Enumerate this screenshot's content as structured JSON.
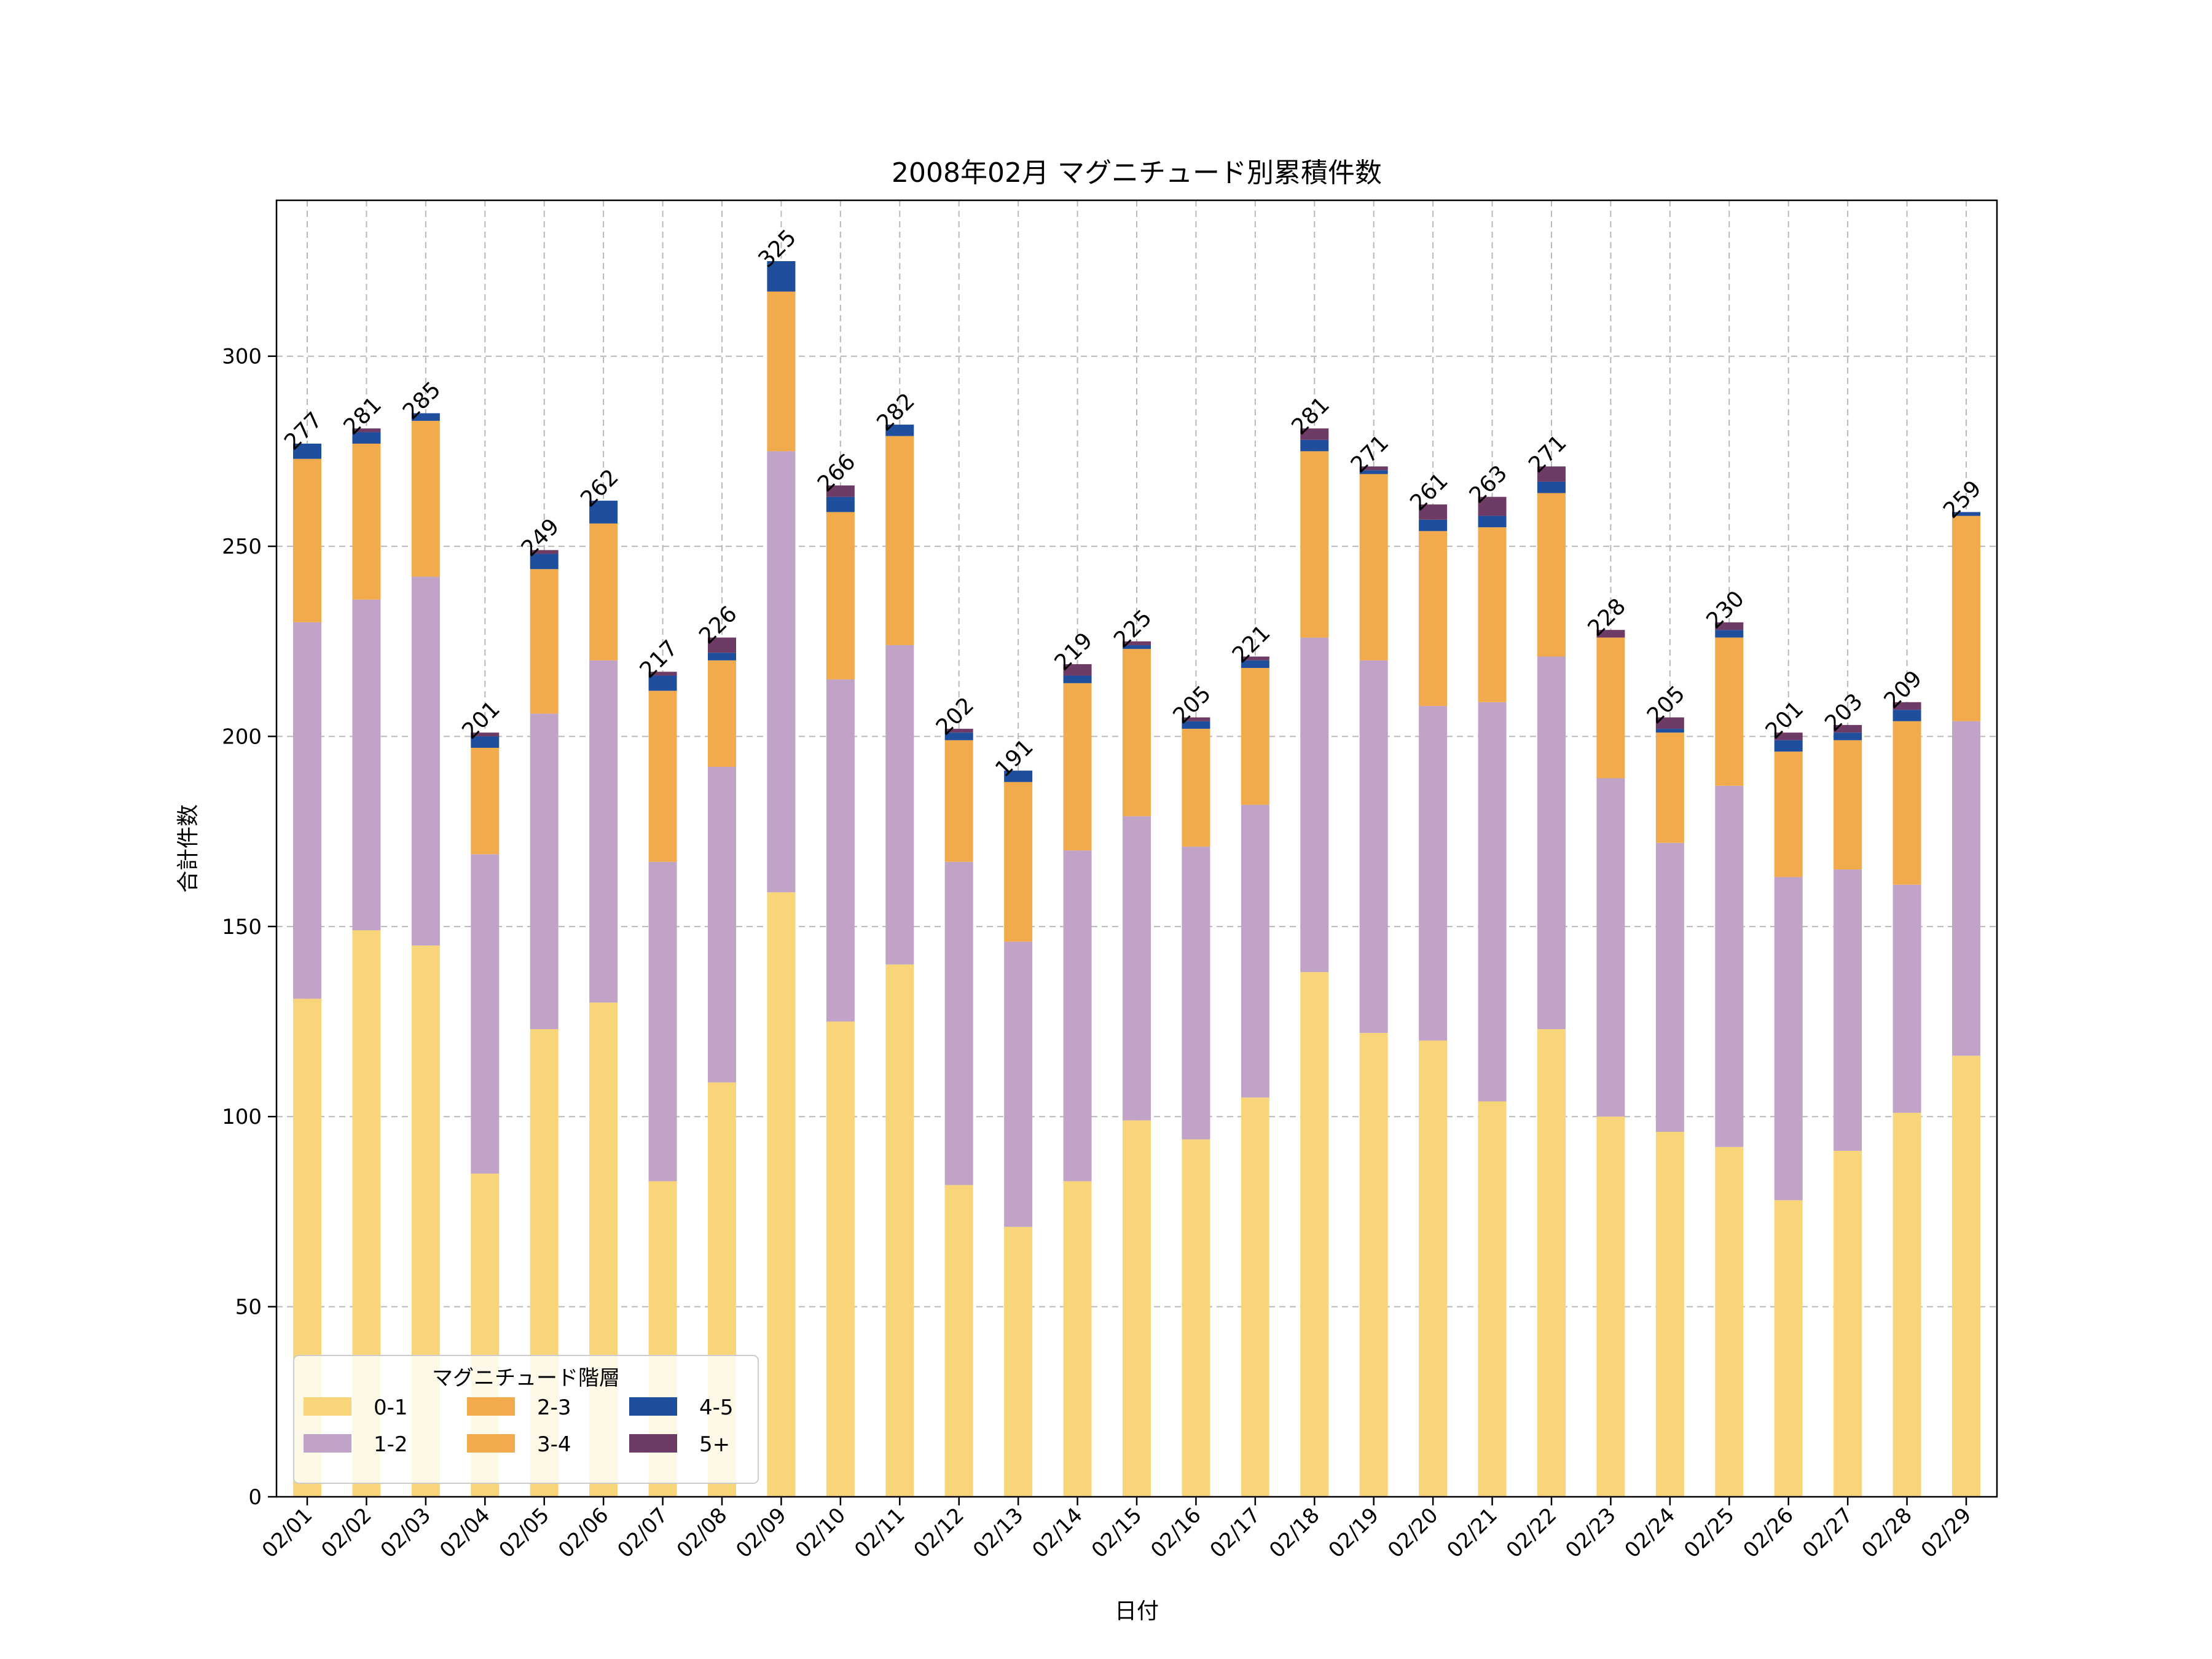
{
  "chart_data": {
    "type": "bar",
    "stacked": true,
    "title": "2008年02月 マグニチュード別累積件数",
    "xlabel": "日付",
    "ylabel": "合計件数",
    "ylim": [
      0,
      341
    ],
    "yticks": [
      0,
      50,
      100,
      150,
      200,
      250,
      300
    ],
    "grid": true,
    "legend": {
      "title": "マグニチュード階層",
      "placement": "lower-left"
    },
    "categories": [
      "02/01",
      "02/02",
      "02/03",
      "02/04",
      "02/05",
      "02/06",
      "02/07",
      "02/08",
      "02/09",
      "02/10",
      "02/11",
      "02/12",
      "02/13",
      "02/14",
      "02/15",
      "02/16",
      "02/17",
      "02/18",
      "02/19",
      "02/20",
      "02/21",
      "02/22",
      "02/23",
      "02/24",
      "02/25",
      "02/26",
      "02/27",
      "02/28",
      "02/29"
    ],
    "series": [
      {
        "name": "0-1",
        "color": "#F9D57A",
        "values": [
          131,
          149,
          145,
          85,
          123,
          130,
          83,
          109,
          159,
          125,
          140,
          82,
          71,
          83,
          99,
          94,
          105,
          138,
          122,
          120,
          104,
          123,
          100,
          96,
          92,
          78,
          91,
          101,
          116
        ]
      },
      {
        "name": "1-2",
        "color": "#C0A3C6",
        "values": [
          99,
          87,
          97,
          84,
          83,
          90,
          84,
          83,
          116,
          90,
          84,
          85,
          75,
          87,
          80,
          77,
          77,
          88,
          98,
          88,
          105,
          98,
          89,
          76,
          95,
          85,
          74,
          60,
          88
        ]
      },
      {
        "name": "2-3",
        "color": "#F2AB4C",
        "values": [
          43,
          41,
          41,
          28,
          38,
          36,
          45,
          28,
          42,
          44,
          55,
          32,
          42,
          44,
          44,
          31,
          36,
          49,
          49,
          46,
          46,
          43,
          37,
          29,
          39,
          33,
          34,
          43,
          54
        ]
      },
      {
        "name": "3-4",
        "color": "#F2AB4C",
        "values": [
          0,
          0,
          0,
          0,
          0,
          0,
          0,
          0,
          0,
          0,
          0,
          0,
          0,
          0,
          0,
          0,
          0,
          0,
          0,
          0,
          0,
          0,
          0,
          0,
          0,
          0,
          0,
          0,
          0
        ]
      },
      {
        "name": "4-5",
        "color": "#1F4E9C",
        "values": [
          4,
          3,
          2,
          3,
          4,
          6,
          4,
          2,
          8,
          4,
          3,
          2,
          3,
          2,
          1,
          2,
          2,
          3,
          1,
          3,
          3,
          3,
          0,
          1,
          2,
          3,
          2,
          3,
          1
        ]
      },
      {
        "name": "5+",
        "color": "#6E3A66",
        "values": [
          0,
          1,
          0,
          1,
          1,
          0,
          1,
          4,
          0,
          3,
          0,
          1,
          0,
          3,
          1,
          1,
          1,
          3,
          1,
          4,
          5,
          4,
          2,
          3,
          2,
          2,
          2,
          2,
          0
        ]
      }
    ],
    "totals": [
      277,
      281,
      285,
      201,
      249,
      262,
      217,
      226,
      325,
      266,
      282,
      202,
      191,
      219,
      225,
      205,
      221,
      281,
      271,
      261,
      263,
      271,
      228,
      205,
      230,
      201,
      203,
      209,
      259
    ]
  }
}
